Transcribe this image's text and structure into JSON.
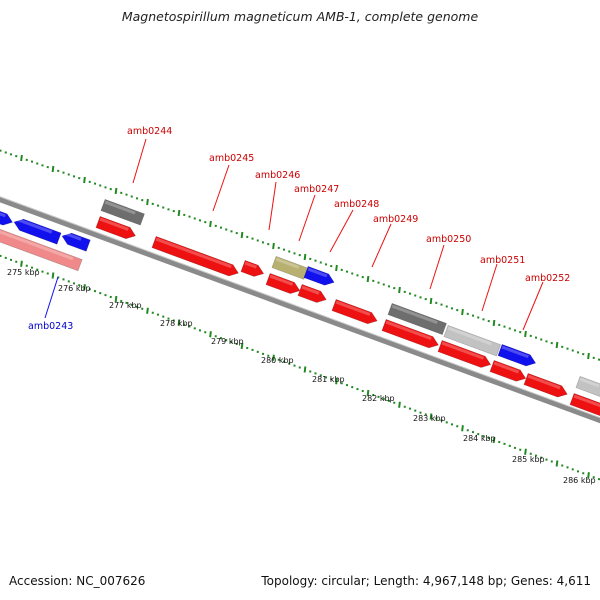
{
  "title": "Magnetospirillum magneticum AMB-1, complete genome",
  "footer": {
    "accession": "Accession: NC_007626",
    "summary": "Topology: circular; Length: 4,967,148 bp; Genes: 4,611"
  },
  "scale_labels": [
    "275 kbp",
    "276 kbp",
    "277 kbp",
    "278 kbp",
    "279 kbp",
    "280 kbp",
    "281 kbp",
    "282 kbp",
    "283 kbp",
    "284 kbp",
    "285 kbp",
    "286 kbp"
  ],
  "gene_labels": [
    {
      "text": "amb0243",
      "color": "#0000cc"
    },
    {
      "text": "amb0244",
      "color": "#cc0000"
    },
    {
      "text": "amb0245",
      "color": "#cc0000"
    },
    {
      "text": "amb0246",
      "color": "#cc0000"
    },
    {
      "text": "amb0247",
      "color": "#cc0000"
    },
    {
      "text": "amb0248",
      "color": "#cc0000"
    },
    {
      "text": "amb0249",
      "color": "#cc0000"
    },
    {
      "text": "amb0250",
      "color": "#cc0000"
    },
    {
      "text": "amb0251",
      "color": "#cc0000"
    },
    {
      "text": "amb0252",
      "color": "#cc0000"
    }
  ],
  "feature_colors": {
    "cds": "#ee1111",
    "blue": "#1111ee",
    "pink": "#f08a8a",
    "dark_gray": "#6e6e6e",
    "light_gray": "#c2c2c2",
    "olive": "#b8b070",
    "tick_green": "#228822",
    "backbone": "#8a8a8a"
  }
}
